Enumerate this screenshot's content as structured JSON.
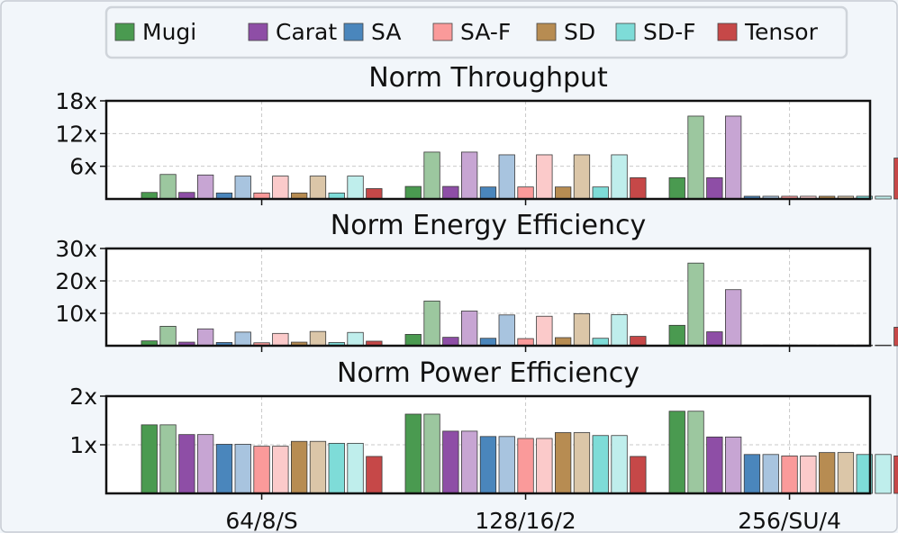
{
  "legend": [
    {
      "name": "Mugi",
      "color": "#4a9a50"
    },
    {
      "name": "Carat",
      "color": "#8e4ea6"
    },
    {
      "name": "SA",
      "color": "#4a86bc"
    },
    {
      "name": "SA-F",
      "color": "#fa9a9a"
    },
    {
      "name": "SD",
      "color": "#b78c52"
    },
    {
      "name": "SD-F",
      "color": "#7edcd8"
    },
    {
      "name": "Tensor",
      "color": "#c64848"
    }
  ],
  "light_colors": {
    "Mugi": "#9cc79f",
    "Carat": "#c7a5d3",
    "SA": "#a8c4df",
    "SA-F": "#fbcaca",
    "SD": "#dbc6a8",
    "SD-F": "#bfeeec"
  },
  "chart_data": [
    {
      "type": "bar",
      "title": "Norm Throughput",
      "categories": [
        "64/8/S",
        "128/16/2",
        "256/SU/4"
      ],
      "yticks": [
        "6x",
        "12x",
        "18x"
      ],
      "ytick_values": [
        6,
        12,
        18
      ],
      "ylim": [
        0,
        18
      ],
      "grid": true,
      "series": [
        {
          "name": "Mugi",
          "shade": "dark",
          "values": [
            1.2,
            2.3,
            3.9
          ]
        },
        {
          "name": "Mugi",
          "shade": "light",
          "values": [
            4.5,
            8.6,
            15.2
          ]
        },
        {
          "name": "Carat",
          "shade": "dark",
          "values": [
            1.2,
            2.3,
            3.9
          ]
        },
        {
          "name": "Carat",
          "shade": "light",
          "values": [
            4.4,
            8.6,
            15.2
          ]
        },
        {
          "name": "SA",
          "shade": "dark",
          "values": [
            1.1,
            2.2,
            0.5
          ]
        },
        {
          "name": "SA",
          "shade": "light",
          "values": [
            4.2,
            8.1,
            0.5
          ]
        },
        {
          "name": "SA-F",
          "shade": "dark",
          "values": [
            1.1,
            2.2,
            0.5
          ]
        },
        {
          "name": "SA-F",
          "shade": "light",
          "values": [
            4.2,
            8.1,
            0.5
          ]
        },
        {
          "name": "SD",
          "shade": "dark",
          "values": [
            1.1,
            2.2,
            0.5
          ]
        },
        {
          "name": "SD",
          "shade": "light",
          "values": [
            4.2,
            8.1,
            0.5
          ]
        },
        {
          "name": "SD-F",
          "shade": "dark",
          "values": [
            1.1,
            2.2,
            0.5
          ]
        },
        {
          "name": "SD-F",
          "shade": "light",
          "values": [
            4.2,
            8.1,
            0.5
          ]
        },
        {
          "name": "Tensor",
          "shade": "dark",
          "values": [
            1.9,
            3.9,
            7.5
          ]
        }
      ]
    },
    {
      "type": "bar",
      "title": "Norm Energy Efficiency",
      "categories": [
        "64/8/S",
        "128/16/2",
        "256/SU/4"
      ],
      "yticks": [
        "10x",
        "20x",
        "30x"
      ],
      "ytick_values": [
        10,
        20,
        30
      ],
      "ylim": [
        0,
        30
      ],
      "grid": true,
      "series": [
        {
          "name": "Mugi",
          "shade": "dark",
          "values": [
            1.5,
            3.5,
            6.3
          ]
        },
        {
          "name": "Mugi",
          "shade": "light",
          "values": [
            6.0,
            13.8,
            25.5
          ]
        },
        {
          "name": "Carat",
          "shade": "dark",
          "values": [
            1.1,
            2.6,
            4.3
          ]
        },
        {
          "name": "Carat",
          "shade": "light",
          "values": [
            5.2,
            10.7,
            17.3
          ]
        },
        {
          "name": "SA",
          "shade": "dark",
          "values": [
            1.0,
            2.3,
            0.2
          ]
        },
        {
          "name": "SA",
          "shade": "light",
          "values": [
            4.2,
            9.5,
            0.2
          ]
        },
        {
          "name": "SA-F",
          "shade": "dark",
          "values": [
            0.9,
            2.2,
            0.2
          ]
        },
        {
          "name": "SA-F",
          "shade": "light",
          "values": [
            3.8,
            9.1,
            0.2
          ]
        },
        {
          "name": "SD",
          "shade": "dark",
          "values": [
            1.1,
            2.5,
            0.2
          ]
        },
        {
          "name": "SD",
          "shade": "light",
          "values": [
            4.4,
            9.9,
            0.2
          ]
        },
        {
          "name": "SD-F",
          "shade": "dark",
          "values": [
            1.0,
            2.3,
            0.2
          ]
        },
        {
          "name": "SD-F",
          "shade": "light",
          "values": [
            4.1,
            9.6,
            0.2
          ]
        },
        {
          "name": "Tensor",
          "shade": "dark",
          "values": [
            1.4,
            2.9,
            5.7
          ]
        }
      ]
    },
    {
      "type": "bar",
      "title": "Norm Power Efficiency",
      "categories": [
        "64/8/S",
        "128/16/2",
        "256/SU/4"
      ],
      "yticks": [
        "1x",
        "2x"
      ],
      "ytick_values": [
        1,
        2
      ],
      "ylim": [
        0,
        2
      ],
      "grid": true,
      "series": [
        {
          "name": "Mugi",
          "shade": "dark",
          "values": [
            1.41,
            1.63,
            1.69
          ]
        },
        {
          "name": "Mugi",
          "shade": "light",
          "values": [
            1.41,
            1.63,
            1.69
          ]
        },
        {
          "name": "Carat",
          "shade": "dark",
          "values": [
            1.21,
            1.28,
            1.16
          ]
        },
        {
          "name": "Carat",
          "shade": "light",
          "values": [
            1.21,
            1.28,
            1.16
          ]
        },
        {
          "name": "SA",
          "shade": "dark",
          "values": [
            1.01,
            1.17,
            0.8
          ]
        },
        {
          "name": "SA",
          "shade": "light",
          "values": [
            1.01,
            1.17,
            0.8
          ]
        },
        {
          "name": "SA-F",
          "shade": "dark",
          "values": [
            0.97,
            1.13,
            0.77
          ]
        },
        {
          "name": "SA-F",
          "shade": "light",
          "values": [
            0.97,
            1.13,
            0.77
          ]
        },
        {
          "name": "SD",
          "shade": "dark",
          "values": [
            1.07,
            1.25,
            0.84
          ]
        },
        {
          "name": "SD",
          "shade": "light",
          "values": [
            1.07,
            1.25,
            0.84
          ]
        },
        {
          "name": "SD-F",
          "shade": "dark",
          "values": [
            1.03,
            1.19,
            0.8
          ]
        },
        {
          "name": "SD-F",
          "shade": "light",
          "values": [
            1.03,
            1.19,
            0.8
          ]
        },
        {
          "name": "Tensor",
          "shade": "dark",
          "values": [
            0.76,
            0.76,
            0.77
          ]
        }
      ]
    }
  ]
}
